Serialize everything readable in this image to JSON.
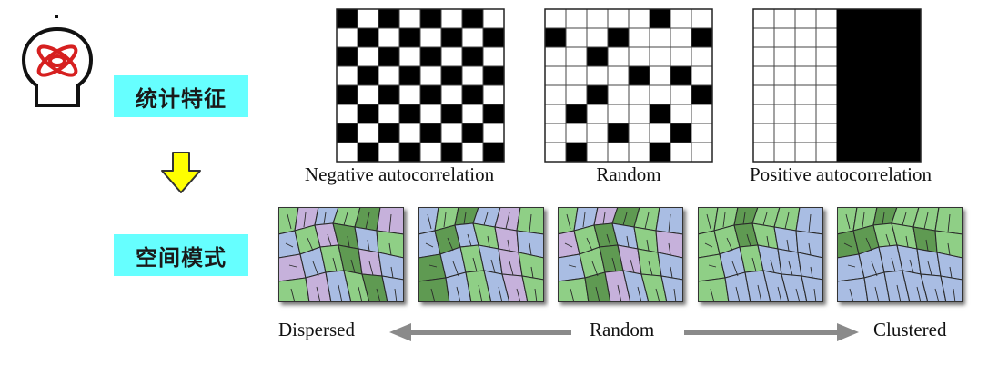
{
  "labels": {
    "stat_feature": "统计特征",
    "spatial_pattern": "空间模式"
  },
  "icons": {
    "logo": "atom-head-logo",
    "arrow": "down-arrow-icon"
  },
  "grids": [
    {
      "caption": "Negative  autocorrelation",
      "pattern": "checkerboard"
    },
    {
      "caption": "Random",
      "pattern": "random"
    },
    {
      "caption": "Positive autocorrelation",
      "pattern": "split"
    }
  ],
  "maps": {
    "count": 5,
    "colors": {
      "green": "#8fcf86",
      "blue": "#a9bde3",
      "purple": "#c6b1db",
      "dark": "#5f9a52"
    }
  },
  "axis": {
    "left": "Dispersed",
    "center": "Random",
    "right": "Clustered"
  },
  "colors": {
    "tag_bg": "#66ffff",
    "arrow_yellow": "#ffff00",
    "logo_red": "#d62020"
  }
}
